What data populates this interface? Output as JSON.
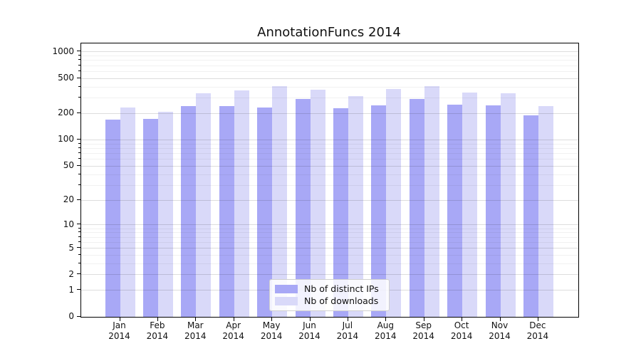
{
  "title": "AnnotationFuncs 2014",
  "colors": {
    "distinct_ips_bar": "#a8a8f6",
    "downloads_bar": "#d9d9f9",
    "axis": "#000000",
    "grid_major": "#dddddd",
    "grid_minor": "#f1f1f1",
    "text": "#111111",
    "legend_border": "#cfcfcf",
    "legend_bg": "#ffffff"
  },
  "chart_data": {
    "type": "bar",
    "title": "AnnotationFuncs 2014",
    "categories": [
      "Jan",
      "Feb",
      "Mar",
      "Apr",
      "May",
      "Jun",
      "Jul",
      "Aug",
      "Sep",
      "Oct",
      "Nov",
      "Dec"
    ],
    "year_label": "2014",
    "series": [
      {
        "name": "Nb of distinct IPs",
        "values": [
          170,
          172,
          242,
          245,
          235,
          292,
          230,
          248,
          295,
          252,
          247,
          190
        ]
      },
      {
        "name": "Nb of downloads",
        "values": [
          235,
          210,
          338,
          369,
          412,
          374,
          314,
          378,
          410,
          346,
          340,
          242
        ]
      }
    ],
    "yscale": "log1p",
    "yticks": [
      0,
      1,
      2,
      5,
      10,
      20,
      50,
      100,
      200,
      500,
      1000
    ],
    "yminorticks": [
      3,
      4,
      6,
      7,
      8,
      9,
      30,
      40,
      60,
      70,
      80,
      90,
      300,
      400,
      600,
      700,
      800,
      900
    ],
    "ylim": [
      0,
      1250
    ],
    "xlabel": "",
    "ylabel": "",
    "grid": true,
    "legend_position": "lower-center"
  },
  "legend": {
    "items": [
      "Nb of distinct IPs",
      "Nb of downloads"
    ]
  }
}
